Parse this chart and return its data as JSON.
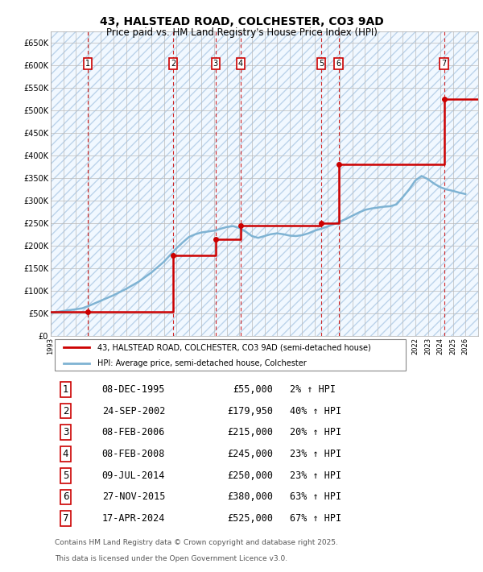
{
  "title": "43, HALSTEAD ROAD, COLCHESTER, CO3 9AD",
  "subtitle": "Price paid vs. HM Land Registry's House Price Index (HPI)",
  "legend_line1": "43, HALSTEAD ROAD, COLCHESTER, CO3 9AD (semi-detached house)",
  "legend_line2": "HPI: Average price, semi-detached house, Colchester",
  "footer1": "Contains HM Land Registry data © Crown copyright and database right 2025.",
  "footer2": "This data is licensed under the Open Government Licence v3.0.",
  "transactions": [
    {
      "num": 1,
      "date": "08-DEC-1995",
      "price": 55000,
      "pct": "2%",
      "year": 1995.94
    },
    {
      "num": 2,
      "date": "24-SEP-2002",
      "price": 179950,
      "pct": "40%",
      "year": 2002.73
    },
    {
      "num": 3,
      "date": "08-FEB-2006",
      "price": 215000,
      "pct": "20%",
      "year": 2006.11
    },
    {
      "num": 4,
      "date": "08-FEB-2008",
      "price": 245000,
      "pct": "23%",
      "year": 2008.11
    },
    {
      "num": 5,
      "date": "09-JUL-2014",
      "price": 250000,
      "pct": "23%",
      "year": 2014.52
    },
    {
      "num": 6,
      "date": "27-NOV-2015",
      "price": 380000,
      "pct": "63%",
      "year": 2015.9
    },
    {
      "num": 7,
      "date": "17-APR-2024",
      "price": 525000,
      "pct": "67%",
      "year": 2024.29
    }
  ],
  "hpi_line": {
    "years": [
      1993.0,
      1993.5,
      1994.0,
      1994.5,
      1995.0,
      1995.5,
      1996.0,
      1996.5,
      1997.0,
      1997.5,
      1998.0,
      1998.5,
      1999.0,
      1999.5,
      2000.0,
      2000.5,
      2001.0,
      2001.5,
      2002.0,
      2002.5,
      2003.0,
      2003.5,
      2004.0,
      2004.5,
      2005.0,
      2005.5,
      2006.0,
      2006.5,
      2007.0,
      2007.5,
      2008.0,
      2008.5,
      2009.0,
      2009.5,
      2010.0,
      2010.5,
      2011.0,
      2011.5,
      2012.0,
      2012.5,
      2013.0,
      2013.5,
      2014.0,
      2014.5,
      2015.0,
      2015.5,
      2016.0,
      2016.5,
      2017.0,
      2017.5,
      2018.0,
      2018.5,
      2019.0,
      2019.5,
      2020.0,
      2020.5,
      2021.0,
      2021.5,
      2022.0,
      2022.5,
      2023.0,
      2023.5,
      2024.0,
      2024.5,
      2025.0,
      2025.5,
      2026.0
    ],
    "values": [
      52000,
      54000,
      56000,
      58000,
      60000,
      62000,
      67000,
      73000,
      79000,
      85000,
      91000,
      98000,
      105000,
      113000,
      121000,
      131000,
      141000,
      153000,
      165000,
      180000,
      195000,
      208000,
      220000,
      226000,
      230000,
      232000,
      234000,
      238000,
      242000,
      244000,
      240000,
      232000,
      222000,
      218000,
      222000,
      226000,
      228000,
      226000,
      223000,
      222000,
      224000,
      228000,
      234000,
      238000,
      243000,
      248000,
      254000,
      260000,
      267000,
      274000,
      280000,
      283000,
      285000,
      287000,
      288000,
      292000,
      308000,
      325000,
      345000,
      355000,
      348000,
      338000,
      330000,
      325000,
      322000,
      318000,
      315000
    ]
  },
  "xlim": [
    1993,
    2027
  ],
  "ylim": [
    0,
    675000
  ],
  "yticks": [
    0,
    50000,
    100000,
    150000,
    200000,
    250000,
    300000,
    350000,
    400000,
    450000,
    500000,
    550000,
    600000,
    650000
  ],
  "xticks": [
    1993,
    1994,
    1995,
    1996,
    1997,
    1998,
    1999,
    2000,
    2001,
    2002,
    2003,
    2004,
    2005,
    2006,
    2007,
    2008,
    2009,
    2010,
    2011,
    2012,
    2013,
    2014,
    2015,
    2016,
    2017,
    2018,
    2019,
    2020,
    2021,
    2022,
    2023,
    2024,
    2025,
    2026
  ],
  "price_line_color": "#cc0000",
  "hpi_line_color": "#7fb3d3",
  "dashed_vline_color": "#cc0000",
  "grid_color": "#bbbbbb",
  "marker_box_color": "#cc0000",
  "title_fontsize": 10,
  "subtitle_fontsize": 8.5
}
